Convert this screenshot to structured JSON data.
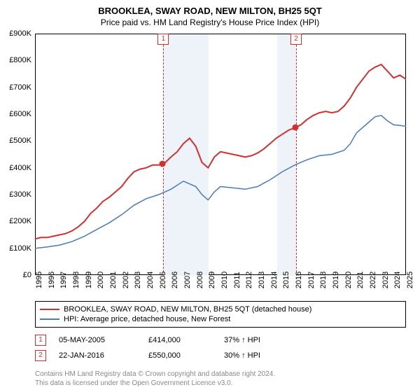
{
  "title": "BROOKLEA, SWAY ROAD, NEW MILTON, BH25 5QT",
  "subtitle": "Price paid vs. HM Land Registry's House Price Index (HPI)",
  "chart": {
    "type": "line",
    "xlim": [
      1995,
      2025
    ],
    "ylim": [
      0,
      900000
    ],
    "ytick_step": 100000,
    "ytick_labels": [
      "£0",
      "£100K",
      "£200K",
      "£300K",
      "£400K",
      "£500K",
      "£600K",
      "£700K",
      "£800K",
      "£900K"
    ],
    "xticks": [
      1995,
      1996,
      1997,
      1998,
      1999,
      2000,
      2001,
      2002,
      2003,
      2004,
      2005,
      2006,
      2007,
      2008,
      2009,
      2010,
      2011,
      2012,
      2013,
      2014,
      2015,
      2016,
      2017,
      2018,
      2019,
      2020,
      2021,
      2022,
      2023,
      2024,
      2025
    ],
    "background_color": "#ffffff",
    "border_color": "#000000",
    "shade_color": "#eef2f9",
    "shade_ranges": [
      [
        2005.33,
        2009.0
      ],
      [
        2014.5,
        2016.06
      ]
    ],
    "series": [
      {
        "name": "BROOKLEA, SWAY ROAD, NEW MILTON, BH25 5QT (detached house)",
        "color": "#d32f2f",
        "line_width": 2,
        "data": [
          [
            1995,
            135000
          ],
          [
            1995.5,
            140000
          ],
          [
            1996,
            140000
          ],
          [
            1996.5,
            145000
          ],
          [
            1997,
            150000
          ],
          [
            1997.5,
            155000
          ],
          [
            1998,
            165000
          ],
          [
            1998.5,
            180000
          ],
          [
            1999,
            200000
          ],
          [
            1999.5,
            230000
          ],
          [
            2000,
            250000
          ],
          [
            2000.5,
            275000
          ],
          [
            2001,
            290000
          ],
          [
            2001.5,
            310000
          ],
          [
            2002,
            330000
          ],
          [
            2002.5,
            360000
          ],
          [
            2003,
            385000
          ],
          [
            2003.5,
            395000
          ],
          [
            2004,
            400000
          ],
          [
            2004.5,
            410000
          ],
          [
            2005,
            410000
          ],
          [
            2005.33,
            414000
          ],
          [
            2005.5,
            418000
          ],
          [
            2006,
            440000
          ],
          [
            2006.5,
            460000
          ],
          [
            2007,
            490000
          ],
          [
            2007.5,
            510000
          ],
          [
            2008,
            480000
          ],
          [
            2008.5,
            420000
          ],
          [
            2009,
            400000
          ],
          [
            2009.5,
            440000
          ],
          [
            2010,
            460000
          ],
          [
            2010.5,
            455000
          ],
          [
            2011,
            450000
          ],
          [
            2011.5,
            445000
          ],
          [
            2012,
            440000
          ],
          [
            2012.5,
            445000
          ],
          [
            2013,
            455000
          ],
          [
            2013.5,
            470000
          ],
          [
            2014,
            490000
          ],
          [
            2014.5,
            510000
          ],
          [
            2015,
            525000
          ],
          [
            2015.5,
            540000
          ],
          [
            2016.06,
            550000
          ],
          [
            2016.5,
            560000
          ],
          [
            2017,
            580000
          ],
          [
            2017.5,
            595000
          ],
          [
            2018,
            605000
          ],
          [
            2018.5,
            610000
          ],
          [
            2019,
            605000
          ],
          [
            2019.5,
            610000
          ],
          [
            2020,
            630000
          ],
          [
            2020.5,
            660000
          ],
          [
            2021,
            700000
          ],
          [
            2021.5,
            730000
          ],
          [
            2022,
            760000
          ],
          [
            2022.5,
            775000
          ],
          [
            2023,
            785000
          ],
          [
            2023.5,
            760000
          ],
          [
            2024,
            735000
          ],
          [
            2024.5,
            745000
          ],
          [
            2025,
            730000
          ]
        ]
      },
      {
        "name": "HPI: Average price, detached house, New Forest",
        "color": "#4a7ab8",
        "line_width": 1.5,
        "data": [
          [
            1995,
            100000
          ],
          [
            1996,
            105000
          ],
          [
            1997,
            112000
          ],
          [
            1998,
            125000
          ],
          [
            1999,
            145000
          ],
          [
            2000,
            170000
          ],
          [
            2001,
            195000
          ],
          [
            2002,
            225000
          ],
          [
            2003,
            260000
          ],
          [
            2004,
            285000
          ],
          [
            2005,
            300000
          ],
          [
            2006,
            320000
          ],
          [
            2007,
            350000
          ],
          [
            2008,
            330000
          ],
          [
            2008.5,
            300000
          ],
          [
            2009,
            280000
          ],
          [
            2009.5,
            310000
          ],
          [
            2010,
            330000
          ],
          [
            2011,
            325000
          ],
          [
            2012,
            320000
          ],
          [
            2013,
            330000
          ],
          [
            2014,
            355000
          ],
          [
            2015,
            385000
          ],
          [
            2016,
            410000
          ],
          [
            2017,
            430000
          ],
          [
            2018,
            445000
          ],
          [
            2019,
            450000
          ],
          [
            2020,
            465000
          ],
          [
            2020.5,
            490000
          ],
          [
            2021,
            530000
          ],
          [
            2022,
            570000
          ],
          [
            2022.5,
            590000
          ],
          [
            2023,
            595000
          ],
          [
            2023.5,
            575000
          ],
          [
            2024,
            560000
          ],
          [
            2025,
            555000
          ]
        ]
      }
    ],
    "markers": [
      {
        "x": 2005.33,
        "y": 414000,
        "color": "#d32f2f"
      },
      {
        "x": 2016.06,
        "y": 550000,
        "color": "#d32f2f"
      }
    ],
    "events": [
      {
        "id": "1",
        "x": 2005.33
      },
      {
        "id": "2",
        "x": 2016.06
      }
    ]
  },
  "legend": {
    "items": [
      {
        "color": "#d32f2f",
        "label": "BROOKLEA, SWAY ROAD, NEW MILTON, BH25 5QT (detached house)"
      },
      {
        "color": "#4a7ab8",
        "label": "HPI: Average price, detached house, New Forest"
      }
    ]
  },
  "event_rows": [
    {
      "id": "1",
      "date": "05-MAY-2005",
      "price": "£414,000",
      "rel": "37% ↑ HPI"
    },
    {
      "id": "2",
      "date": "22-JAN-2016",
      "price": "£550,000",
      "rel": "30% ↑ HPI"
    }
  ],
  "footer": {
    "line1": "Contains HM Land Registry data © Crown copyright and database right 2024.",
    "line2": "This data is licensed under the Open Government Licence v3.0."
  }
}
